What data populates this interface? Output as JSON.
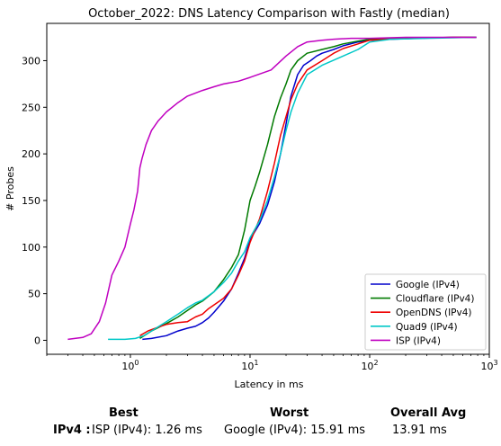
{
  "chart_data": {
    "type": "line",
    "title": "October_2022: DNS Latency Comparison with Fastly (median)",
    "xlabel": "Latency in ms",
    "ylabel": "# Probes",
    "xscale": "log",
    "xlim": [
      0.2,
      1000
    ],
    "ylim": [
      -15,
      340
    ],
    "x_ticks": [
      {
        "value": 1,
        "base": "10",
        "exp": "0"
      },
      {
        "value": 10,
        "base": "10",
        "exp": "1"
      },
      {
        "value": 100,
        "base": "10",
        "exp": "2"
      },
      {
        "value": 1000,
        "base": "10",
        "exp": "3"
      }
    ],
    "y_ticks": [
      {
        "value": 0,
        "label": "0"
      },
      {
        "value": 50,
        "label": "50"
      },
      {
        "value": 100,
        "label": "100"
      },
      {
        "value": 150,
        "label": "150"
      },
      {
        "value": 200,
        "label": "200"
      },
      {
        "value": 250,
        "label": "250"
      },
      {
        "value": 300,
        "label": "300"
      }
    ],
    "legend_position": "lower-right",
    "grid": false,
    "series": [
      {
        "name": "Google (IPv4)",
        "color": "#0000cc",
        "x": [
          1.26,
          1.5,
          2,
          2.5,
          3,
          3.5,
          4,
          4.5,
          5,
          6,
          7,
          8,
          9,
          10,
          12,
          14,
          16,
          18,
          20,
          22,
          25,
          28,
          32,
          36,
          40,
          50,
          60,
          80,
          100,
          150,
          250,
          500,
          780
        ],
        "y": [
          1,
          2,
          5,
          10,
          13,
          15,
          19,
          24,
          30,
          42,
          55,
          72,
          88,
          108,
          125,
          145,
          170,
          200,
          232,
          262,
          285,
          295,
          300,
          305,
          308,
          312,
          316,
          320,
          322,
          323,
          324,
          325,
          325
        ]
      },
      {
        "name": "Cloudflare (IPv4)",
        "color": "#007a00",
        "x": [
          1.2,
          1.5,
          2,
          2.5,
          3,
          3.5,
          4,
          5,
          6,
          7,
          8,
          9,
          10,
          11,
          12,
          14,
          16,
          18,
          20,
          22,
          25,
          30,
          40,
          50,
          60,
          80,
          100,
          200,
          500,
          780
        ],
        "y": [
          2,
          10,
          18,
          25,
          32,
          38,
          42,
          52,
          65,
          78,
          92,
          118,
          150,
          165,
          180,
          210,
          240,
          260,
          275,
          290,
          300,
          308,
          312,
          315,
          318,
          321,
          323,
          324,
          325,
          325
        ]
      },
      {
        "name": "OpenDNS (IPv4)",
        "color": "#ee0000",
        "x": [
          1.2,
          1.4,
          1.7,
          2,
          2.5,
          3,
          3.5,
          4,
          4.5,
          5,
          6,
          7,
          8,
          9,
          10,
          12,
          14,
          16,
          18,
          20,
          22,
          25,
          30,
          40,
          50,
          60,
          80,
          100,
          200,
          500,
          780
        ],
        "y": [
          5,
          10,
          14,
          17,
          19,
          20,
          25,
          28,
          34,
          38,
          45,
          55,
          70,
          85,
          105,
          130,
          160,
          190,
          220,
          240,
          258,
          275,
          290,
          300,
          308,
          313,
          318,
          322,
          324,
          325,
          325
        ]
      },
      {
        "name": "Quad9 (IPv4)",
        "color": "#00c8c8",
        "x": [
          0.65,
          0.9,
          1.1,
          1.3,
          1.5,
          2,
          2.5,
          3,
          3.5,
          4,
          5,
          6,
          7,
          8,
          9,
          10,
          12,
          14,
          16,
          18,
          20,
          22,
          25,
          30,
          40,
          60,
          80,
          100,
          150,
          300,
          780
        ],
        "y": [
          1,
          1,
          2,
          5,
          10,
          20,
          28,
          35,
          40,
          43,
          52,
          62,
          72,
          85,
          95,
          110,
          128,
          150,
          175,
          200,
          225,
          245,
          265,
          285,
          295,
          305,
          312,
          320,
          323,
          324,
          325
        ]
      },
      {
        "name": "ISP (IPv4)",
        "color": "#c000c0",
        "x": [
          0.3,
          0.4,
          0.47,
          0.55,
          0.62,
          0.7,
          0.8,
          0.9,
          1.0,
          1.07,
          1.15,
          1.2,
          1.25,
          1.35,
          1.5,
          1.7,
          2,
          2.5,
          3,
          4,
          5,
          6,
          8,
          10,
          15,
          20,
          25,
          30,
          40,
          50,
          70,
          100,
          200,
          500,
          780
        ],
        "y": [
          1,
          3,
          7,
          20,
          40,
          70,
          85,
          100,
          125,
          140,
          160,
          185,
          195,
          210,
          225,
          235,
          245,
          255,
          262,
          268,
          272,
          275,
          278,
          282,
          290,
          305,
          315,
          320,
          322,
          323,
          324,
          324,
          325,
          325,
          325
        ]
      }
    ]
  },
  "summary": {
    "headers": {
      "best": "Best",
      "worst": "Worst",
      "overall": "Overall Avg"
    },
    "row_label": "IPv4 :",
    "best_value": "ISP (IPv4): 1.26 ms",
    "worst_value": "Google (IPv4): 15.91 ms",
    "overall_value": "13.91 ms"
  }
}
